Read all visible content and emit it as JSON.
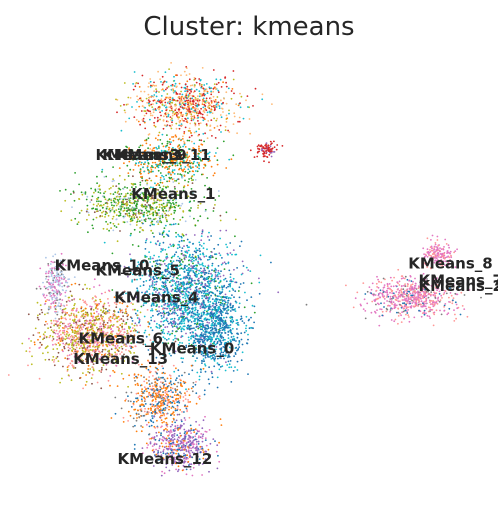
{
  "chart_data": {
    "type": "scatter",
    "title": "Cluster: kmeans",
    "xlabel": "",
    "ylabel": "",
    "axes_visible": false,
    "grid": false,
    "legend": "on data",
    "clusters": [
      {
        "name": "KMeans_0",
        "color": "#1f77b4",
        "x": 0.13,
        "y": -0.26
      },
      {
        "name": "KMeans_1",
        "color": "#ff7f0e",
        "x": 0.02,
        "y": 0.65
      },
      {
        "name": "KMeans_2",
        "color": "#2ca02c",
        "x": 1.71,
        "y": 0.11
      },
      {
        "name": "KMeans_3",
        "color": "#d62728",
        "x": -0.19,
        "y": 0.88
      },
      {
        "name": "KMeans_4",
        "color": "#9467bd",
        "x": -0.08,
        "y": 0.04
      },
      {
        "name": "KMeans_5",
        "color": "#8c564b",
        "x": -0.19,
        "y": 0.2
      },
      {
        "name": "KMeans_6",
        "color": "#e377c2",
        "x": -0.29,
        "y": -0.2
      },
      {
        "name": "KMeans_7",
        "color": "#7f7f7f",
        "x": 1.71,
        "y": 0.14
      },
      {
        "name": "KMeans_8",
        "color": "#bcbd22",
        "x": 1.65,
        "y": 0.24
      },
      {
        "name": "KMeans_9",
        "color": "#17becf",
        "x": -0.15,
        "y": 0.88
      },
      {
        "name": "KMeans_10",
        "color": "#aec7e8",
        "x": -0.4,
        "y": 0.23
      },
      {
        "name": "KMeans_11",
        "color": "#ffbb78",
        "x": -0.04,
        "y": 0.88
      },
      {
        "name": "KMeans_12",
        "color": "#98df8a",
        "x": -0.03,
        "y": -0.91
      },
      {
        "name": "KMeans_13",
        "color": "#ff9896",
        "x": -0.29,
        "y": -0.32
      }
    ]
  }
}
